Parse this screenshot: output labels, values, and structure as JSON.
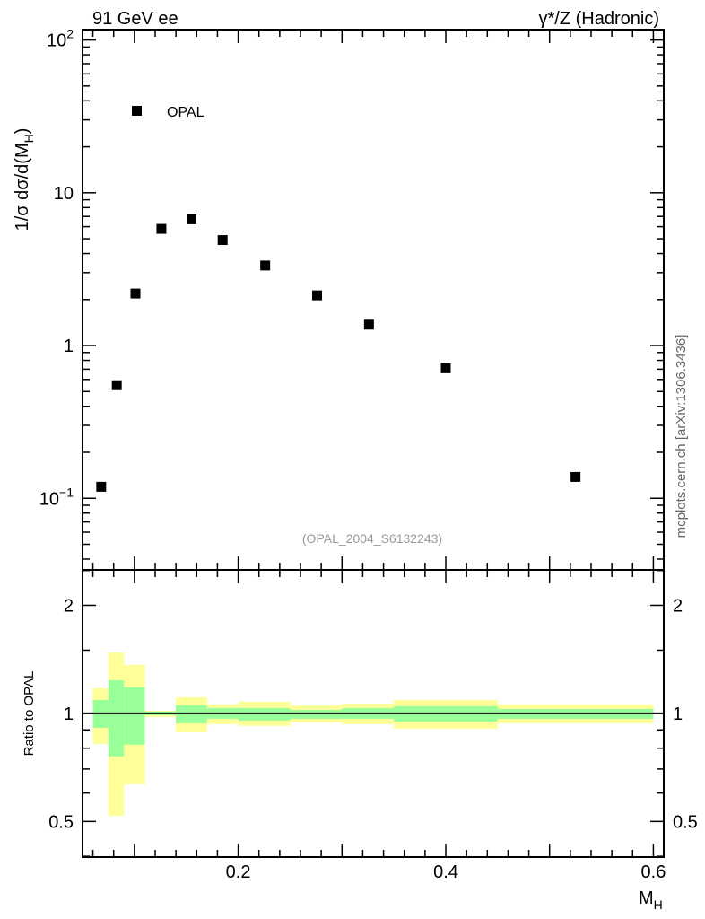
{
  "chart_data": [
    {
      "type": "scatter",
      "title_left": "91 GeV ee",
      "title_right": "γ*/Z (Hadronic)",
      "ylabel": "1/σ dσ/d(M_H)",
      "ylabel_main": "1/σ dσ/d(M",
      "ylabel_sub": "H",
      "ylabel_close": ")",
      "yscale": "log",
      "xlim": [
        0.05,
        0.61
      ],
      "ylim": [
        0.034,
        117
      ],
      "yticks": [
        {
          "value": 100,
          "base": "10",
          "exp": "2"
        },
        {
          "value": 10,
          "base": "10",
          "exp": ""
        },
        {
          "value": 1,
          "base": "1",
          "exp": ""
        },
        {
          "value": 0.1,
          "base": "10",
          "exp": "−1"
        }
      ],
      "legend": {
        "label": "OPAL",
        "placement": "top-left"
      },
      "watermark": "(OPAL_2004_S6132243)",
      "side_label": "mcplots.cern.ch [arXiv:1306.3436]",
      "series": [
        {
          "name": "OPAL",
          "marker": "square",
          "color": "#000000",
          "x": [
            0.068,
            0.083,
            0.101,
            0.126,
            0.155,
            0.185,
            0.226,
            0.276,
            0.326,
            0.4,
            0.525
          ],
          "y": [
            0.119,
            0.55,
            2.19,
            5.8,
            6.7,
            4.9,
            3.34,
            2.13,
            1.37,
            0.71,
            0.138
          ]
        }
      ]
    },
    {
      "type": "area",
      "ylabel": "Ratio to OPAL",
      "xlabel_main": "M",
      "xlabel_sub": "H",
      "yscale": "log",
      "xlim": [
        0.05,
        0.61
      ],
      "ylim": [
        0.398,
        2.51
      ],
      "yticks": [
        {
          "value": 2,
          "label": "2"
        },
        {
          "value": 1,
          "label": "1"
        },
        {
          "value": 0.5,
          "label": "0.5"
        }
      ],
      "xticks": [
        {
          "value": 0.2,
          "label": "0.2"
        },
        {
          "value": 0.4,
          "label": "0.4"
        },
        {
          "value": 0.6,
          "label": "0.6"
        }
      ],
      "reference_line": 1,
      "colors": {
        "outer": "#ffff99",
        "inner": "#99ff99"
      },
      "bins": [
        {
          "lo": 0.06,
          "hi": 0.075,
          "outer": [
            0.822,
            1.175
          ],
          "inner": [
            0.912,
            1.09
          ]
        },
        {
          "lo": 0.075,
          "hi": 0.09,
          "outer": [
            0.519,
            1.479
          ],
          "inner": [
            0.759,
            1.237
          ]
        },
        {
          "lo": 0.09,
          "hi": 0.11,
          "outer": [
            0.634,
            1.365
          ],
          "inner": [
            0.818,
            1.182
          ]
        },
        {
          "lo": 0.11,
          "hi": 0.14,
          "outer": [
            0.977,
            1.017
          ],
          "inner": [
            0.989,
            1.012
          ]
        },
        {
          "lo": 0.14,
          "hi": 0.17,
          "outer": [
            0.886,
            1.109
          ],
          "inner": [
            0.939,
            1.053
          ]
        },
        {
          "lo": 0.17,
          "hi": 0.2,
          "outer": [
            0.933,
            1.059
          ],
          "inner": [
            0.966,
            1.035
          ]
        },
        {
          "lo": 0.2,
          "hi": 0.25,
          "outer": [
            0.923,
            1.078
          ],
          "inner": [
            0.955,
            1.035
          ]
        },
        {
          "lo": 0.25,
          "hi": 0.3,
          "outer": [
            0.944,
            1.053
          ],
          "inner": [
            0.966,
            1.023
          ]
        },
        {
          "lo": 0.3,
          "hi": 0.35,
          "outer": [
            0.933,
            1.065
          ],
          "inner": [
            0.966,
            1.035
          ]
        },
        {
          "lo": 0.35,
          "hi": 0.45,
          "outer": [
            0.907,
            1.09
          ],
          "inner": [
            0.949,
            1.047
          ]
        },
        {
          "lo": 0.45,
          "hi": 0.6,
          "outer": [
            0.939,
            1.059
          ],
          "inner": [
            0.966,
            1.029
          ]
        }
      ]
    }
  ]
}
